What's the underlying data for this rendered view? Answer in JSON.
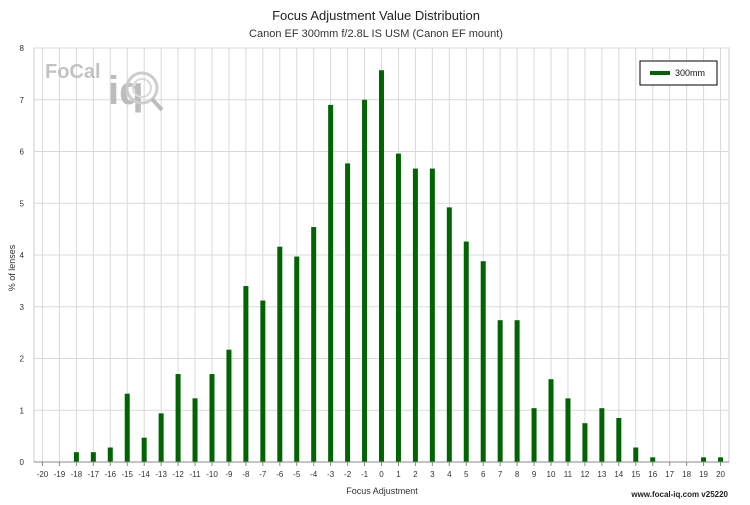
{
  "chart_data": {
    "type": "bar",
    "title": "Focus Adjustment Value Distribution",
    "subtitle": "Canon EF 300mm f/2.8L IS USM (Canon EF mount)",
    "xlabel": "Focus Adjustment",
    "ylabel": "% of lenses",
    "ylim": [
      0,
      8
    ],
    "yticks": [
      "0",
      "1",
      "2",
      "3",
      "4",
      "5",
      "6",
      "7",
      "8"
    ],
    "categories": [
      "-20",
      "-19",
      "-18",
      "-17",
      "-16",
      "-15",
      "-14",
      "-13",
      "-12",
      "-11",
      "-10",
      "-9",
      "-8",
      "-7",
      "-6",
      "-5",
      "-4",
      "-3",
      "-2",
      "-1",
      "0",
      "1",
      "2",
      "3",
      "4",
      "5",
      "6",
      "7",
      "8",
      "9",
      "10",
      "11",
      "12",
      "13",
      "14",
      "15",
      "16",
      "17",
      "18",
      "19",
      "20"
    ],
    "series": [
      {
        "name": "300mm",
        "color": "#006400",
        "values": [
          0,
          0,
          0.19,
          0.19,
          0.28,
          1.32,
          0.47,
          0.94,
          1.7,
          1.23,
          1.7,
          2.17,
          3.4,
          3.12,
          4.16,
          3.97,
          4.54,
          6.9,
          5.77,
          7.0,
          7.57,
          5.96,
          5.67,
          5.67,
          4.92,
          4.26,
          3.88,
          2.74,
          2.74,
          1.04,
          1.6,
          1.23,
          0.75,
          1.04,
          0.85,
          0.28,
          0.09,
          0,
          0,
          0.09,
          0.09
        ]
      }
    ],
    "legend": "top-right",
    "grid": true
  },
  "branding": {
    "logo_focal": "FoCal",
    "logo_iq": "iq",
    "credit": "www.focal-iq.com  v25220"
  }
}
